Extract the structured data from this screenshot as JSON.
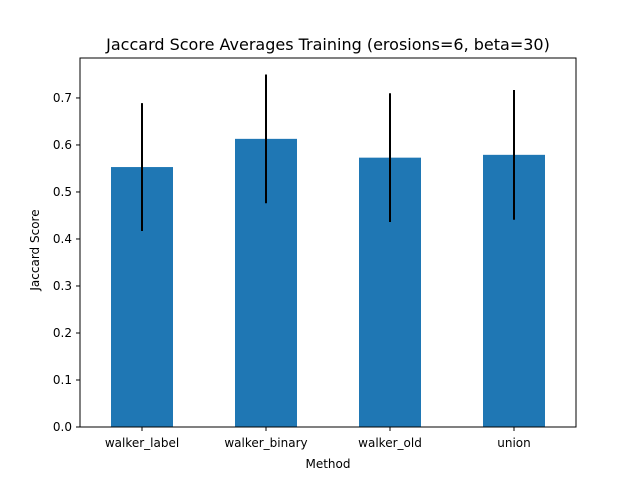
{
  "chart_data": {
    "type": "bar",
    "title": "Jaccard Score Averages Training (erosions=6, beta=30)",
    "xlabel": "Method",
    "ylabel": "Jaccard Score",
    "categories": [
      "walker_label",
      "walker_binary",
      "walker_old",
      "union"
    ],
    "values": [
      0.553,
      0.613,
      0.573,
      0.579
    ],
    "error": [
      0.136,
      0.137,
      0.137,
      0.138
    ],
    "ylim": [
      0,
      0.785
    ],
    "yticks": [
      0.0,
      0.1,
      0.2,
      0.3,
      0.4,
      0.5,
      0.6,
      0.7
    ],
    "ytick_labels": [
      "0.0",
      "0.1",
      "0.2",
      "0.3",
      "0.4",
      "0.5",
      "0.6",
      "0.7"
    ],
    "grid": false,
    "legend": "none",
    "colors": {
      "bar": "#1f77b4",
      "errorbar": "#000000",
      "axis": "#000000"
    }
  }
}
